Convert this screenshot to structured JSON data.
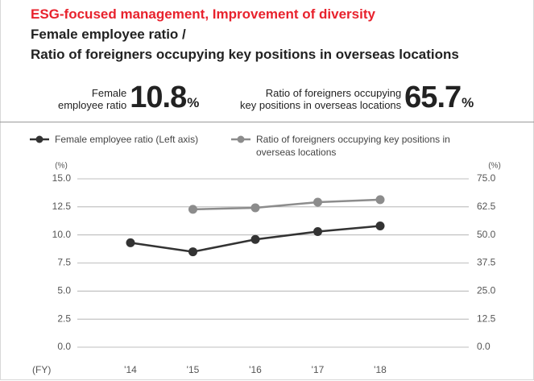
{
  "header": {
    "title": "ESG-focused management, Improvement of diversity",
    "subtitle_lines": [
      "Female employee ratio /",
      "Ratio of foreigners occupying key positions in overseas locations"
    ]
  },
  "kpis": [
    {
      "label_lines": [
        "Female",
        "employee ratio"
      ],
      "value": "10.8",
      "unit": "%"
    },
    {
      "label_lines": [
        "Ratio of foreigners occupying",
        "key positions in overseas locations"
      ],
      "value": "65.7",
      "unit": "%"
    }
  ],
  "chart_data": {
    "type": "line",
    "categories": [
      "'14",
      "'15",
      "'16",
      "'17",
      "'18"
    ],
    "x_label": "(FY)",
    "y_label": "(%)",
    "y2_label": "(%)",
    "series": [
      {
        "name": "Female employee ratio (Left axis)",
        "color": "#333333",
        "values": [
          9.3,
          8.5,
          9.6,
          10.3,
          10.8
        ]
      },
      {
        "name": "Ratio of foreigners occupying key positions in overseas locations",
        "color": "#8c8c8c",
        "axis": "y2",
        "values": [
          null,
          61.4,
          62.1,
          64.6,
          65.7
        ]
      }
    ],
    "ylim": [
      0,
      15
    ],
    "yticks": [
      {
        "value": 0,
        "label": "0.0"
      },
      2.5,
      {
        "value": 5,
        "label": "5.0"
      },
      7.5,
      {
        "value": 10,
        "label": "10.0"
      },
      12.5,
      {
        "value": 15,
        "label": "15.0"
      }
    ],
    "y2lim": [
      0,
      75
    ],
    "y2ticks": [
      {
        "value": 0,
        "label": "0.0"
      },
      12.5,
      {
        "value": 25,
        "label": "25.0"
      },
      37.5,
      {
        "value": 50,
        "label": "50.0"
      },
      62.5,
      {
        "value": 75,
        "label": "75.0"
      }
    ],
    "grid": true
  }
}
